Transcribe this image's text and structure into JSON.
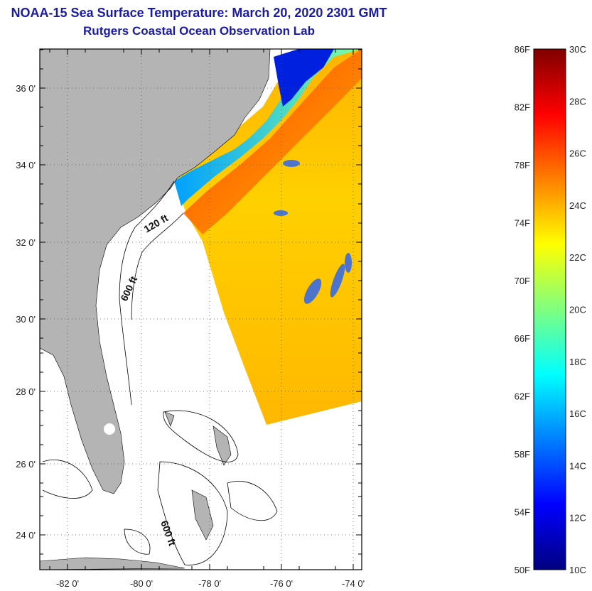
{
  "header": {
    "title": "NOAA-15 Sea Surface Temperature:  March 20, 2020 2301 GMT",
    "subtitle": "Rutgers Coastal Ocean Observation Lab"
  },
  "map": {
    "lat_labels": [
      "36 0'",
      "34 0'",
      "32 0'",
      "30 0'",
      "28 0'",
      "26 0'",
      "24 0'"
    ],
    "lon_labels": [
      "-82 0'",
      "-80 0'",
      "-78 0'",
      "-76 0'",
      "-74 0'"
    ],
    "contour_labels": [
      "120 ft",
      "600 ft",
      "600 ft"
    ],
    "colors": {
      "land": "#b4b4b4",
      "no_data": "#ffffff",
      "frame": "#000000"
    }
  },
  "colorbar": {
    "fahrenheit_labels": [
      "86F",
      "82F",
      "78F",
      "74F",
      "70F",
      "66F",
      "62F",
      "58F",
      "54F",
      "50F"
    ],
    "celsius_labels": [
      "30C",
      "28C",
      "26C",
      "24C",
      "22C",
      "20C",
      "18C",
      "16C",
      "14C",
      "12C",
      "10C"
    ],
    "colormap": [
      "#00007f",
      "#0000ff",
      "#007fff",
      "#00ffff",
      "#7fff7f",
      "#ffff00",
      "#ff7f00",
      "#ff0000",
      "#7f0000"
    ]
  }
}
